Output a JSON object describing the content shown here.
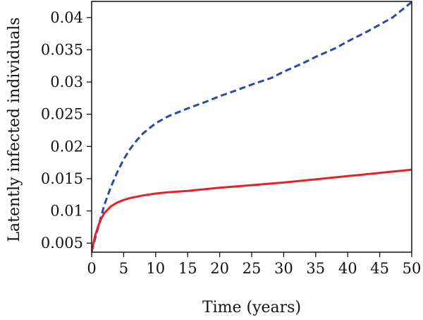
{
  "chart_data": {
    "type": "line",
    "title": "",
    "xlabel": "Time (years)",
    "ylabel": "Latently infected individuals",
    "xlim": [
      0,
      50
    ],
    "ylim": [
      0.0036,
      0.0425
    ],
    "xticks": [
      0,
      5,
      10,
      15,
      20,
      25,
      30,
      35,
      40,
      45,
      50
    ],
    "xtick_labels": [
      "0",
      "5",
      "10",
      "15",
      "20",
      "25",
      "30",
      "35",
      "40",
      "45",
      "50"
    ],
    "yticks": [
      0.005,
      0.01,
      0.015,
      0.02,
      0.025,
      0.03,
      0.035,
      0.04
    ],
    "ytick_labels": [
      "0.005",
      "0.01",
      "0.015",
      "0.02",
      "0.025",
      "0.03",
      "0.035",
      "0.04"
    ],
    "grid": false,
    "legend": "none",
    "series": [
      {
        "color": "#2b4aa8",
        "style": "dashed",
        "x": [
          0,
          1,
          2,
          3,
          4,
          5,
          6,
          7,
          8,
          10,
          12,
          15,
          18,
          20,
          22,
          25,
          28,
          30,
          33,
          35,
          38,
          40,
          43,
          45,
          47,
          50
        ],
        "y": [
          0.0037,
          0.0074,
          0.011,
          0.0137,
          0.016,
          0.018,
          0.0196,
          0.0209,
          0.022,
          0.0236,
          0.0247,
          0.0259,
          0.027,
          0.0278,
          0.0285,
          0.0296,
          0.0306,
          0.0316,
          0.0329,
          0.0339,
          0.0352,
          0.0363,
          0.0378,
          0.0389,
          0.04,
          0.0424
        ]
      },
      {
        "color": "#e8202a",
        "style": "solid",
        "x": [
          0,
          0.5,
          1,
          1.5,
          2,
          3,
          4,
          5,
          6,
          8,
          10,
          12,
          15,
          20,
          25,
          30,
          35,
          40,
          45,
          50
        ],
        "y": [
          0.0036,
          0.006,
          0.0076,
          0.0088,
          0.0097,
          0.0107,
          0.0113,
          0.0117,
          0.012,
          0.0124,
          0.0127,
          0.0129,
          0.0131,
          0.0136,
          0.014,
          0.0144,
          0.0149,
          0.0154,
          0.0159,
          0.0164
        ]
      }
    ]
  }
}
